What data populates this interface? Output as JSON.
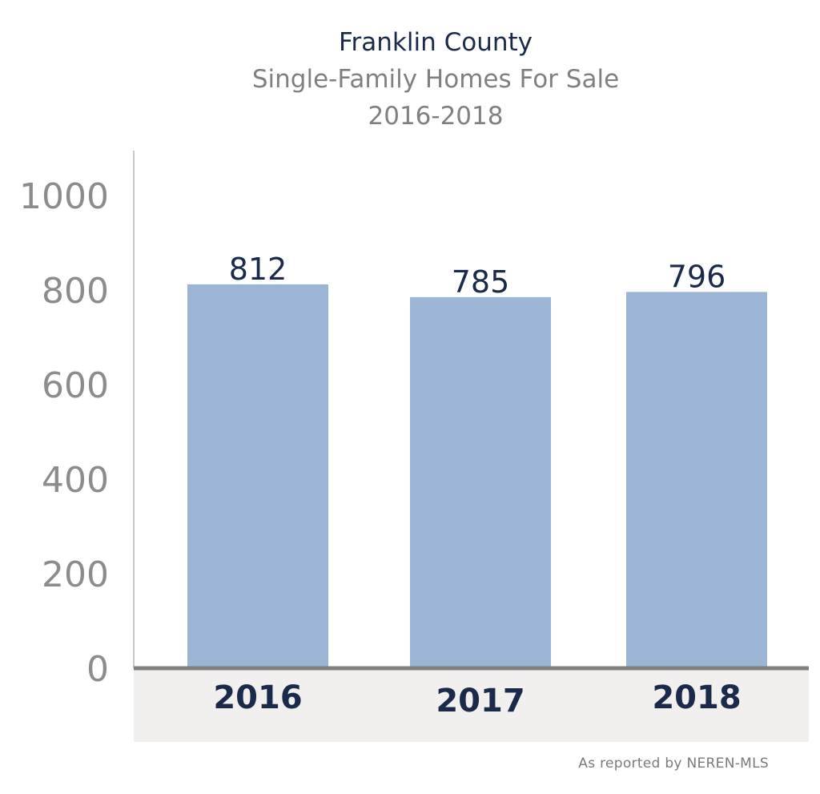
{
  "chart_data": {
    "type": "bar",
    "title": "Franklin County",
    "subtitle": [
      "Single-Family Homes For Sale",
      "2016-2018"
    ],
    "categories": [
      "2016",
      "2017",
      "2018"
    ],
    "values": [
      812,
      785,
      796
    ],
    "data_labels": [
      "812",
      "785",
      "796"
    ],
    "xlabel": "",
    "ylabel": "",
    "ylim": [
      0,
      1100
    ],
    "yticks": [
      0,
      200,
      400,
      600,
      800,
      1000
    ],
    "grid": false,
    "legend": "none",
    "colors": {
      "bar": "#9db5d4",
      "value_label": "#1b2a4a",
      "category_label": "#1b2a4a",
      "tick_label": "#8c8c8c",
      "axis_band": "#f1f0ee",
      "baseline": "#7f7f7f",
      "y_axis": "#c8c8c8"
    }
  },
  "source_note": "As reported by NEREN-MLS"
}
